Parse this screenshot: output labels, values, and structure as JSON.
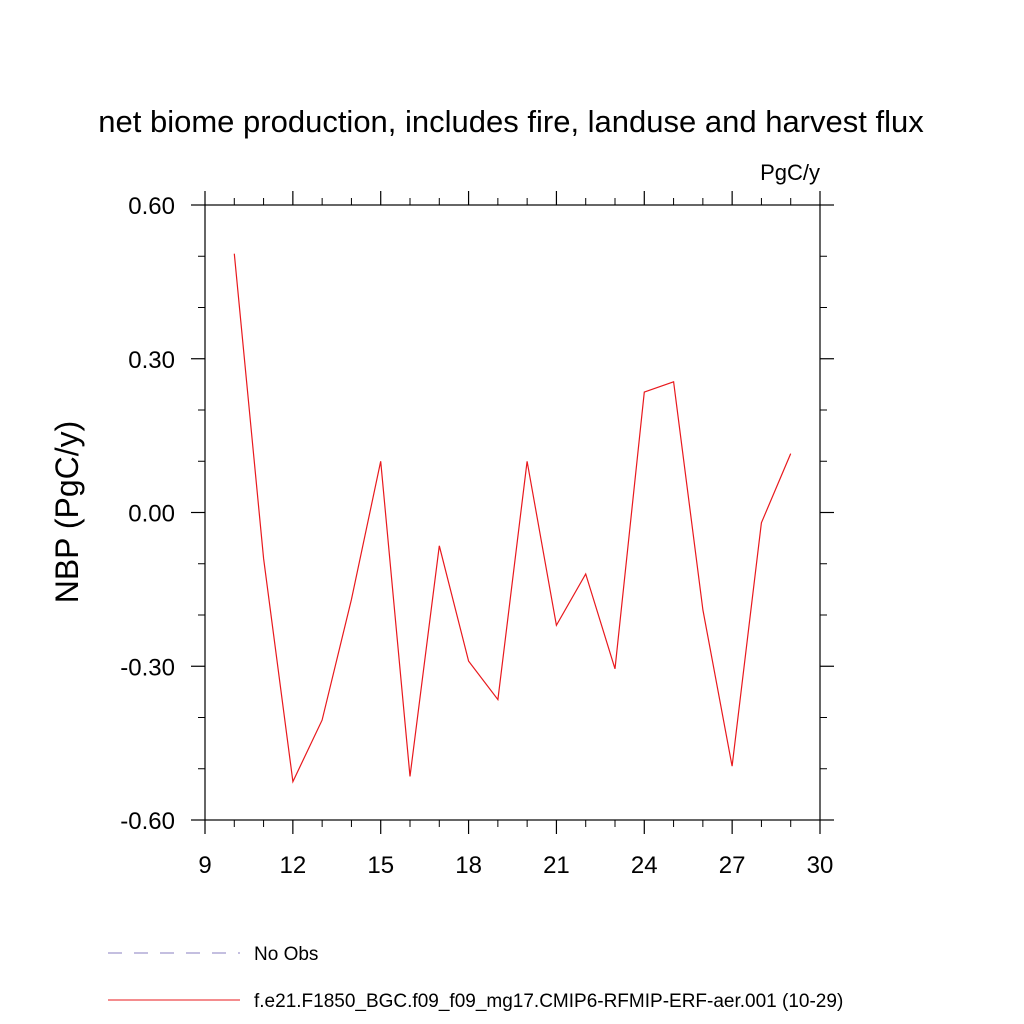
{
  "chart_data": {
    "type": "line",
    "title": "net biome production, includes fire, landuse and harvest flux",
    "units": "PgC/y",
    "xlabel": "",
    "ylabel": "NBP  (PgC/y)",
    "xlim": [
      9,
      30
    ],
    "ylim": [
      -0.6,
      0.6
    ],
    "x_ticks": [
      9,
      12,
      15,
      18,
      21,
      24,
      27,
      30
    ],
    "x_tick_labels": [
      "9",
      "12",
      "15",
      "18",
      "21",
      "24",
      "27",
      "30"
    ],
    "y_ticks": [
      -0.6,
      -0.3,
      0.0,
      0.3,
      0.6
    ],
    "y_tick_labels": [
      "-0.60",
      "-0.30",
      "0.00",
      "0.30",
      "0.60"
    ],
    "grid": false,
    "legend_position": "bottom-left",
    "series": [
      {
        "name": "No Obs",
        "color": "#8a7fc0",
        "dash": "dashed",
        "x": [],
        "y": []
      },
      {
        "name": "f.e21.F1850_BGC.f09_f09_mg17.CMIP6-RFMIP-ERF-aer.001 (10-29)",
        "color": "#e8191d",
        "dash": "solid",
        "x": [
          10,
          11,
          12,
          13,
          14,
          15,
          16,
          17,
          18,
          19,
          20,
          21,
          22,
          23,
          24,
          25,
          26,
          27,
          28,
          29
        ],
        "y": [
          0.505,
          -0.09,
          -0.525,
          -0.405,
          -0.17,
          0.1,
          -0.515,
          -0.065,
          -0.29,
          -0.365,
          0.1,
          -0.22,
          -0.12,
          -0.305,
          0.235,
          0.255,
          -0.19,
          -0.495,
          -0.02,
          0.115
        ]
      }
    ]
  }
}
